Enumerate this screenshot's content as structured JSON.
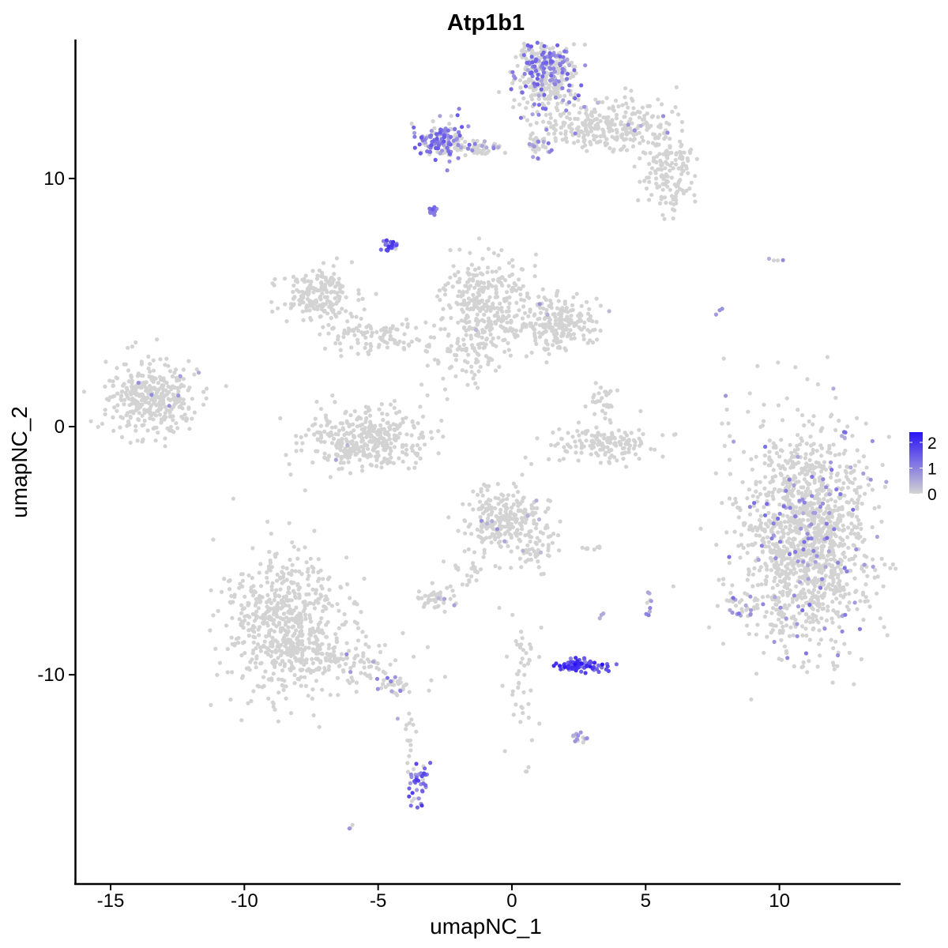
{
  "chart_data": {
    "type": "scatter",
    "title": "Atp1b1",
    "xlabel": "umapNC_1",
    "ylabel": "umapNC_2",
    "xlim": [
      -16.3,
      14.5
    ],
    "ylim": [
      -18.4,
      15.6
    ],
    "x_ticks": [
      -15,
      -10,
      -5,
      0,
      5,
      10
    ],
    "y_ticks": [
      -10,
      0,
      10
    ],
    "x_tick_labels": [
      "-15",
      "-10",
      "-5",
      "0",
      "5",
      "10"
    ],
    "y_tick_labels": [
      "-10",
      "0",
      "10"
    ],
    "grid": false,
    "legend_position": "right",
    "color_low": "#d3d3d3",
    "color_high": "#2a13f5",
    "legend": {
      "title": "",
      "ticks": [
        0,
        1,
        2
      ],
      "tick_labels": [
        "0",
        "1",
        "2"
      ],
      "min": 0,
      "max": 2.4
    },
    "clusters": [
      {
        "cx": 11.0,
        "cy": -4.5,
        "sx": 1.2,
        "sy": 2.2,
        "n": 1400,
        "expr_frac": 0.08,
        "expr_max": 1.3
      },
      {
        "cx": 1.3,
        "cy": 14.2,
        "sx": 0.55,
        "sy": 0.8,
        "n": 380,
        "expr_frac": 0.35,
        "expr_max": 1.5
      },
      {
        "cx": 3.5,
        "cy": 12.1,
        "sx": 1.1,
        "sy": 0.5,
        "n": 260,
        "expr_frac": 0.03,
        "expr_max": 1.0
      },
      {
        "cx": 5.8,
        "cy": 10.4,
        "sx": 0.5,
        "sy": 0.9,
        "n": 160,
        "expr_frac": 0.0,
        "expr_max": 0.0
      },
      {
        "cx": -2.6,
        "cy": 11.5,
        "sx": 0.45,
        "sy": 0.35,
        "n": 150,
        "expr_frac": 0.55,
        "expr_max": 1.6
      },
      {
        "cx": -1.3,
        "cy": 11.2,
        "sx": 0.5,
        "sy": 0.15,
        "n": 50,
        "expr_frac": 0.25,
        "expr_max": 1.2
      },
      {
        "cx": 1.0,
        "cy": 11.4,
        "sx": 0.25,
        "sy": 0.3,
        "n": 40,
        "expr_frac": 0.3,
        "expr_max": 1.2
      },
      {
        "cx": -2.9,
        "cy": 8.7,
        "sx": 0.1,
        "sy": 0.08,
        "n": 16,
        "expr_frac": 0.9,
        "expr_max": 1.5
      },
      {
        "cx": -4.6,
        "cy": 7.3,
        "sx": 0.12,
        "sy": 0.2,
        "n": 22,
        "expr_frac": 0.95,
        "expr_max": 2.0
      },
      {
        "cx": -7.2,
        "cy": 5.2,
        "sx": 0.6,
        "sy": 0.6,
        "n": 190,
        "expr_frac": 0.0,
        "expr_max": 0.0
      },
      {
        "cx": -5.2,
        "cy": 3.7,
        "sx": 0.9,
        "sy": 0.4,
        "n": 110,
        "expr_frac": 0.02,
        "expr_max": 1.0
      },
      {
        "cx": -1.0,
        "cy": 5.0,
        "sx": 0.8,
        "sy": 1.0,
        "n": 330,
        "expr_frac": 0.01,
        "expr_max": 0.8
      },
      {
        "cx": 1.8,
        "cy": 4.2,
        "sx": 0.8,
        "sy": 0.5,
        "n": 210,
        "expr_frac": 0.01,
        "expr_max": 0.8
      },
      {
        "cx": -1.9,
        "cy": 2.8,
        "sx": 0.6,
        "sy": 0.6,
        "n": 60,
        "expr_frac": 0.0,
        "expr_max": 0.0
      },
      {
        "cx": -13.5,
        "cy": 1.2,
        "sx": 0.85,
        "sy": 0.7,
        "n": 360,
        "expr_frac": 0.01,
        "expr_max": 0.9
      },
      {
        "cx": -5.4,
        "cy": -0.5,
        "sx": 1.1,
        "sy": 0.6,
        "n": 380,
        "expr_frac": 0.01,
        "expr_max": 0.9
      },
      {
        "cx": 3.4,
        "cy": -0.7,
        "sx": 1.1,
        "sy": 0.35,
        "n": 150,
        "expr_frac": 0.0,
        "expr_max": 0.0
      },
      {
        "cx": 3.3,
        "cy": 1.0,
        "sx": 0.25,
        "sy": 0.5,
        "n": 30,
        "expr_frac": 0.0,
        "expr_max": 0.0
      },
      {
        "cx": -0.4,
        "cy": -3.8,
        "sx": 0.75,
        "sy": 0.65,
        "n": 250,
        "expr_frac": 0.02,
        "expr_max": 0.9
      },
      {
        "cx": 0.9,
        "cy": -4.8,
        "sx": 0.4,
        "sy": 0.6,
        "n": 45,
        "expr_frac": 0.02,
        "expr_max": 0.8
      },
      {
        "cx": -1.5,
        "cy": -6.0,
        "sx": 0.5,
        "sy": 0.5,
        "n": 25,
        "expr_frac": 0.0,
        "expr_max": 0.0
      },
      {
        "cx": -2.9,
        "cy": -6.9,
        "sx": 0.5,
        "sy": 0.22,
        "n": 45,
        "expr_frac": 0.05,
        "expr_max": 0.9
      },
      {
        "cx": -8.5,
        "cy": -8.0,
        "sx": 1.1,
        "sy": 1.4,
        "n": 650,
        "expr_frac": 0.0,
        "expr_max": 0.0
      },
      {
        "cx": -6.0,
        "cy": -9.5,
        "sx": 1.1,
        "sy": 0.45,
        "n": 90,
        "expr_frac": 0.03,
        "expr_max": 1.0
      },
      {
        "cx": -4.4,
        "cy": -10.4,
        "sx": 0.35,
        "sy": 0.2,
        "n": 30,
        "expr_frac": 0.15,
        "expr_max": 1.3
      },
      {
        "cx": -3.8,
        "cy": -12.2,
        "sx": 0.15,
        "sy": 0.6,
        "n": 15,
        "expr_frac": 0.2,
        "expr_max": 1.2
      },
      {
        "cx": -3.5,
        "cy": -14.6,
        "sx": 0.18,
        "sy": 0.5,
        "n": 40,
        "expr_frac": 0.9,
        "expr_max": 2.0
      },
      {
        "cx": 2.6,
        "cy": -9.6,
        "sx": 0.45,
        "sy": 0.12,
        "n": 90,
        "expr_frac": 1.0,
        "expr_max": 2.4
      },
      {
        "cx": 2.5,
        "cy": -12.5,
        "sx": 0.2,
        "sy": 0.1,
        "n": 14,
        "expr_frac": 0.5,
        "expr_max": 1.1
      },
      {
        "cx": 0.4,
        "cy": -10.0,
        "sx": 0.3,
        "sy": 1.3,
        "n": 45,
        "expr_frac": 0.03,
        "expr_max": 0.8
      },
      {
        "cx": 5.1,
        "cy": -7.2,
        "sx": 0.06,
        "sy": 0.3,
        "n": 9,
        "expr_frac": 0.9,
        "expr_max": 1.2
      },
      {
        "cx": 3.4,
        "cy": -7.6,
        "sx": 0.06,
        "sy": 0.06,
        "n": 3,
        "expr_frac": 1.0,
        "expr_max": 1.0
      },
      {
        "cx": 2.9,
        "cy": -4.9,
        "sx": 0.2,
        "sy": 0.05,
        "n": 8,
        "expr_frac": 0.0,
        "expr_max": 0.0
      },
      {
        "cx": 8.0,
        "cy": 0.0,
        "sx": 0.15,
        "sy": 0.8,
        "n": 8,
        "expr_frac": 0.6,
        "expr_max": 1.2
      },
      {
        "cx": 7.8,
        "cy": 4.7,
        "sx": 0.1,
        "sy": 0.2,
        "n": 3,
        "expr_frac": 0.6,
        "expr_max": 1.0
      },
      {
        "cx": 9.7,
        "cy": 6.7,
        "sx": 0.3,
        "sy": 0.05,
        "n": 4,
        "expr_frac": 0.3,
        "expr_max": 1.2
      },
      {
        "cx": -6.1,
        "cy": -16.1,
        "sx": 0.1,
        "sy": 0.05,
        "n": 3,
        "expr_frac": 0.5,
        "expr_max": 0.8
      },
      {
        "cx": 0.6,
        "cy": -13.8,
        "sx": 0.06,
        "sy": 0.06,
        "n": 3,
        "expr_frac": 0.0,
        "expr_max": 0.0
      },
      {
        "cx": 8.6,
        "cy": -7.2,
        "sx": 0.4,
        "sy": 0.3,
        "n": 25,
        "expr_frac": 0.5,
        "expr_max": 1.3
      }
    ]
  }
}
